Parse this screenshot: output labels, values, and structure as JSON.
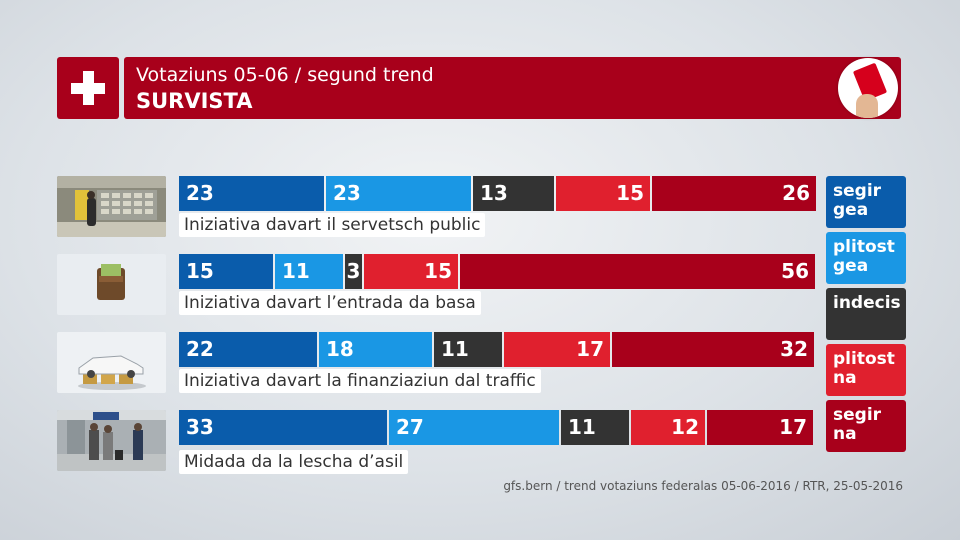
{
  "header": {
    "subtitle": "Votaziuns 05-06 / segund trend",
    "title": "SURVISTA"
  },
  "colors": {
    "segir_gea": "#0a5cab",
    "plitost_gea": "#1a97e4",
    "indecis": "#333333",
    "plitost_na": "#e0202e",
    "segir_na": "#a8001b",
    "brand": "#a8001b"
  },
  "legend": [
    {
      "label": "segir gea",
      "color_key": "segir_gea"
    },
    {
      "label": "plitost gea",
      "color_key": "plitost_gea"
    },
    {
      "label": "indecis",
      "color_key": "indecis"
    },
    {
      "label": "plitost na",
      "color_key": "plitost_na"
    },
    {
      "label": "segir na",
      "color_key": "segir_na"
    }
  ],
  "chart_data": {
    "type": "bar",
    "orientation": "horizontal",
    "stacked": true,
    "title": "SURVISTA",
    "subtitle": "Votaziuns 05-06 / segund trend",
    "unit": "%",
    "categories": [
      "Iniziativa davart il servetsch public",
      "Iniziativa davart l’entrada da basa",
      "Iniziativa davart la finanziaziun dal traffic",
      "Midada da la lescha d’asil"
    ],
    "series": [
      {
        "name": "segir gea",
        "values": [
          23,
          15,
          22,
          33
        ]
      },
      {
        "name": "plitost gea",
        "values": [
          23,
          11,
          18,
          27
        ]
      },
      {
        "name": "indecis",
        "values": [
          13,
          3,
          11,
          11
        ]
      },
      {
        "name": "plitost na",
        "values": [
          15,
          15,
          17,
          12
        ]
      },
      {
        "name": "segir na",
        "values": [
          26,
          56,
          32,
          17
        ]
      }
    ],
    "legend_position": "right"
  },
  "thumbnails": [
    "post-office-counter-photo",
    "wallet-photo",
    "car-on-coins-photo",
    "asylum-seekers-photo"
  ],
  "source": "gfs.bern / trend votaziuns federalas 05-06-2016 / RTR, 25-05-2016"
}
